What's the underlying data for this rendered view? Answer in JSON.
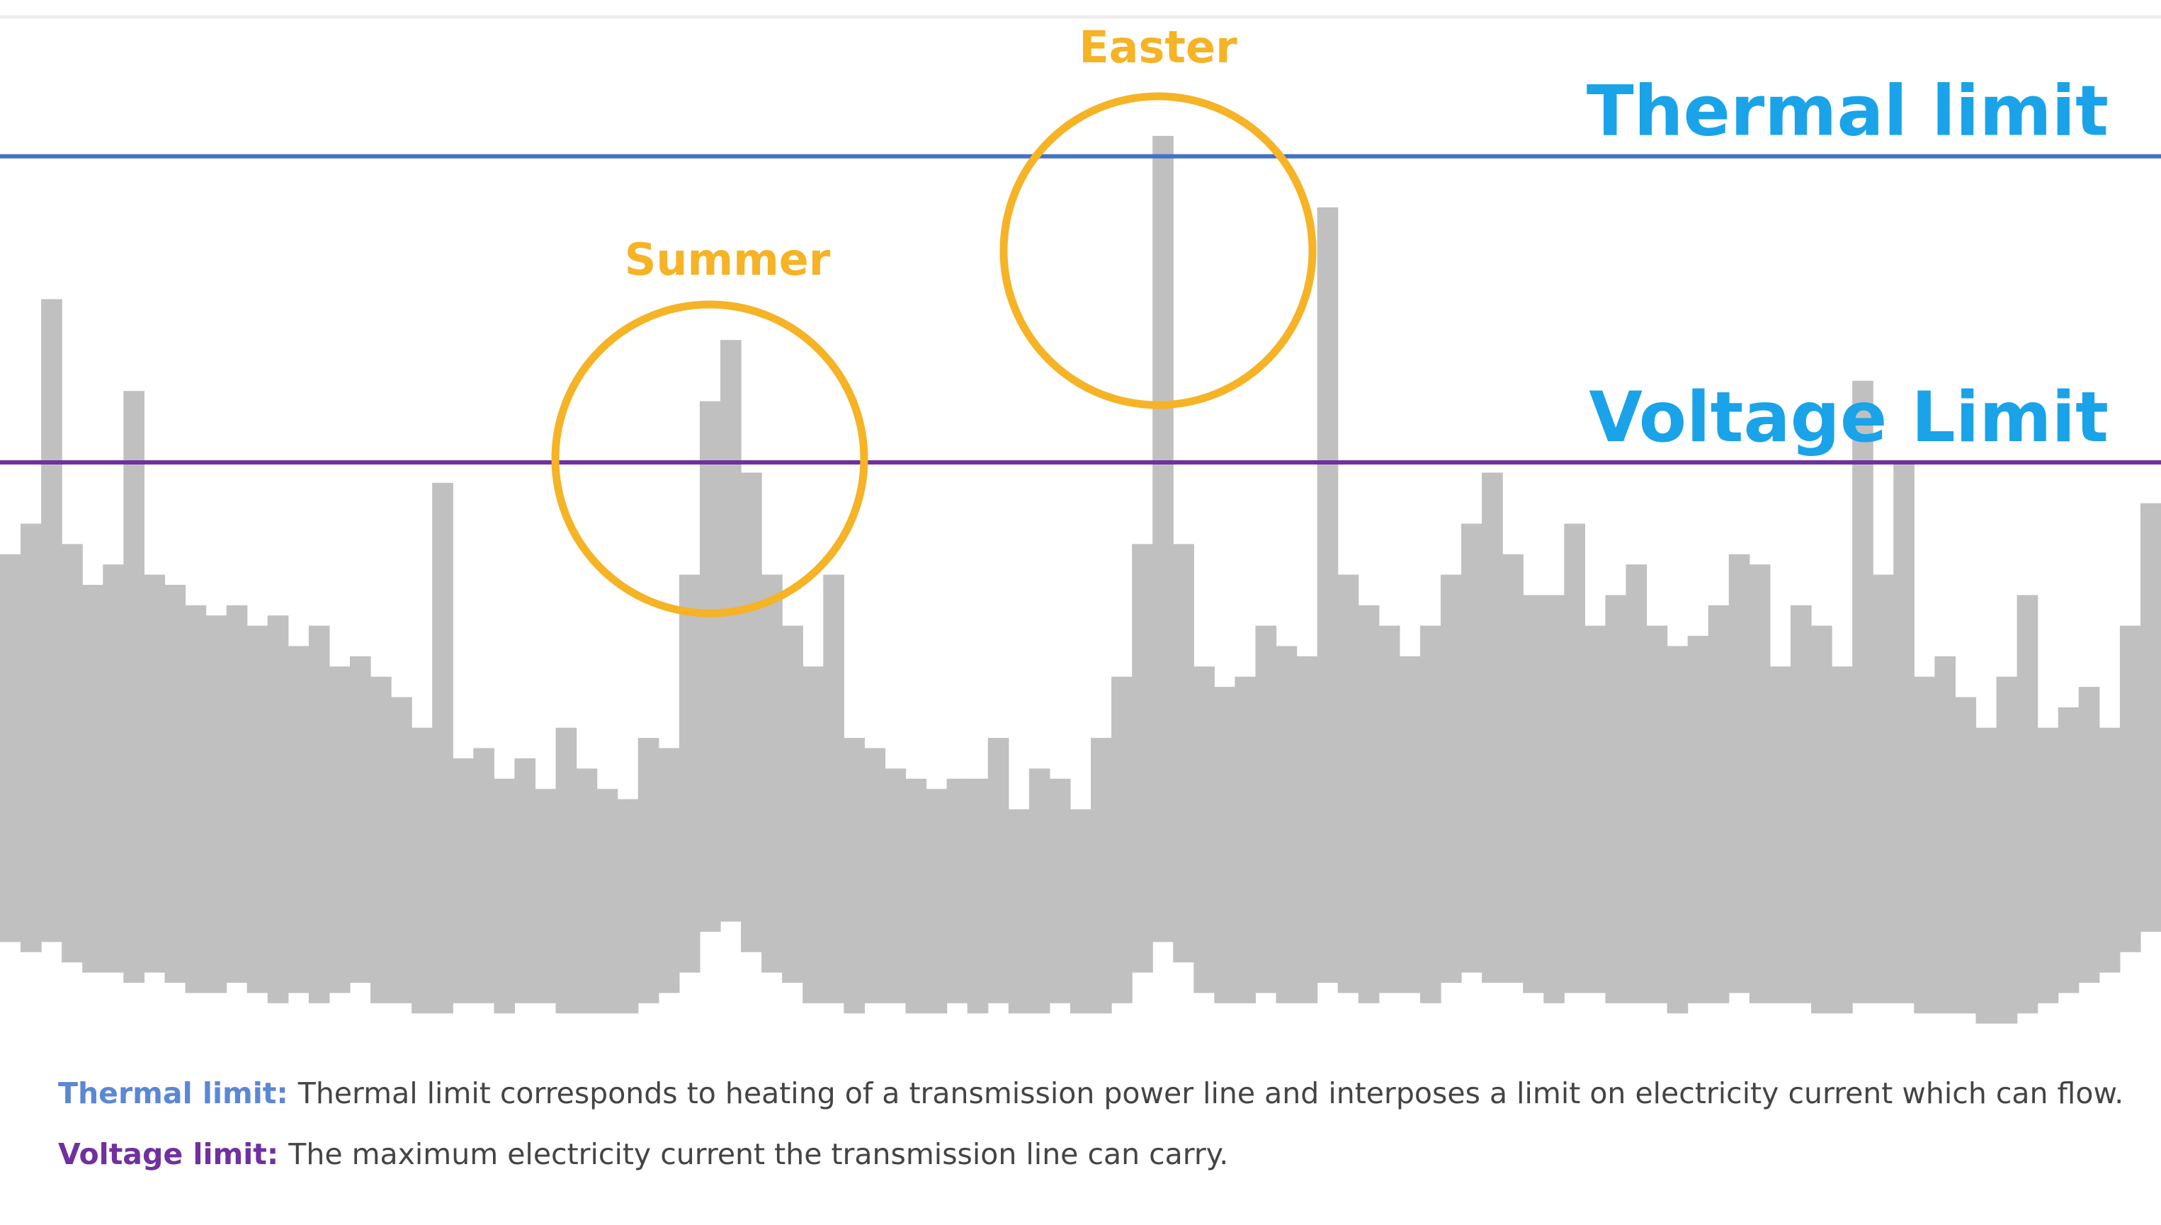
{
  "chart_data": {
    "type": "range",
    "upper": [
      47,
      50,
      72,
      48,
      44,
      46,
      63,
      45,
      44,
      42,
      41,
      42,
      40,
      41,
      38,
      40,
      36,
      37,
      35,
      33,
      30,
      54,
      27,
      28,
      25,
      27,
      24,
      30,
      26,
      24,
      23,
      29,
      28,
      45,
      62,
      68,
      55,
      45,
      40,
      36,
      45,
      29,
      28,
      26,
      25,
      24,
      25,
      25,
      29,
      22,
      26,
      25,
      22,
      29,
      35,
      48,
      88,
      48,
      36,
      34,
      35,
      40,
      38,
      37,
      81,
      45,
      42,
      40,
      37,
      40,
      45,
      50,
      55,
      47,
      43,
      43,
      50,
      40,
      43,
      46,
      40,
      38,
      39,
      42,
      47,
      46,
      36,
      42,
      40,
      36,
      64,
      45,
      56,
      35,
      37,
      33,
      30,
      35,
      43,
      30,
      32,
      34,
      30,
      40,
      52
    ],
    "lower": [
      9,
      8,
      9,
      7,
      6,
      6,
      5,
      6,
      5,
      4,
      4,
      5,
      4,
      3,
      4,
      3,
      4,
      5,
      3,
      3,
      2,
      2,
      3,
      3,
      2,
      3,
      3,
      2,
      2,
      2,
      2,
      3,
      4,
      6,
      10,
      11,
      8,
      6,
      5,
      3,
      3,
      2,
      3,
      3,
      2,
      2,
      3,
      2,
      3,
      2,
      2,
      3,
      2,
      2,
      3,
      6,
      9,
      7,
      4,
      3,
      3,
      4,
      3,
      3,
      5,
      4,
      3,
      4,
      4,
      3,
      5,
      6,
      5,
      5,
      4,
      3,
      4,
      4,
      3,
      3,
      3,
      2,
      3,
      3,
      4,
      3,
      3,
      3,
      2,
      2,
      3,
      3,
      3,
      2,
      2,
      2,
      1,
      1,
      2,
      3,
      4,
      5,
      6,
      8,
      10
    ],
    "color": "#c0c0c0",
    "ylim": [
      0,
      100
    ],
    "limits": [
      {
        "name": "Thermal limit",
        "value": 86,
        "color": "#4472c4",
        "label_color": "#1aa3e8"
      },
      {
        "name": "Voltage Limit",
        "value": 56,
        "color": "#7030a0",
        "label_color": "#1aa3e8"
      }
    ],
    "annotations": [
      "Summer",
      "Easter"
    ],
    "annotation_color": "#f5b325"
  },
  "notes": [
    {
      "term": "Thermal limit:",
      "term_color": "#5b87d6",
      "text": "Thermal limit corresponds to heating of a transmission power line and interposes a limit on electricity current which can flow."
    },
    {
      "term": "Voltage limit:",
      "term_color": "#7030a0",
      "text": "The maximum electricity current the transmission line can carry."
    }
  ]
}
